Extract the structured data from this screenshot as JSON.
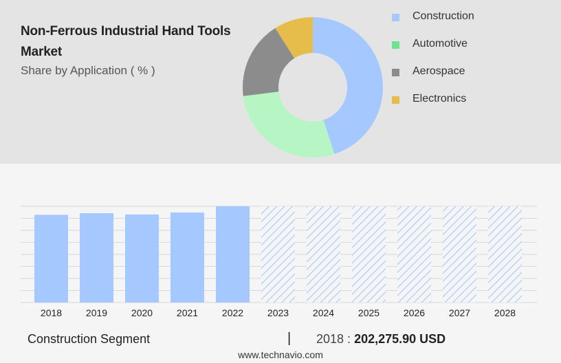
{
  "header": {
    "title": "Non-Ferrous Industrial Hand Tools Market",
    "subtitle": "Share by Application ( % )"
  },
  "legend": [
    {
      "label": "Construction",
      "color": "#a4c8ff"
    },
    {
      "label": "Automotive",
      "color": "#6ee38f"
    },
    {
      "label": "Aerospace",
      "color": "#8c8c8c"
    },
    {
      "label": "Electronics",
      "color": "#e6bd4a"
    }
  ],
  "footer": {
    "segment": "Construction Segment",
    "separator": "|",
    "year_label": "2018 :",
    "value": "202,275.90 USD",
    "source": "www.technavio.com"
  },
  "chart_data": [
    {
      "type": "pie",
      "subtype": "donut",
      "title": "Share by Application ( % )",
      "slices": [
        {
          "label": "Construction",
          "value": 45,
          "color": "#a4c8ff"
        },
        {
          "label": "Automotive",
          "value": 28,
          "color": "#b7f5c4"
        },
        {
          "label": "Aerospace",
          "value": 18,
          "color": "#8c8c8c"
        },
        {
          "label": "Electronics",
          "value": 9,
          "color": "#e6bd4a"
        }
      ]
    },
    {
      "type": "bar",
      "categories": [
        "2018",
        "2019",
        "2020",
        "2021",
        "2022",
        "2023",
        "2024",
        "2025",
        "2026",
        "2027",
        "2028"
      ],
      "values": [
        202275.9,
        206000,
        203000,
        207500,
        222000,
        null,
        null,
        null,
        null,
        null,
        null
      ],
      "forecast": [
        false,
        false,
        false,
        false,
        false,
        true,
        true,
        true,
        true,
        true,
        true
      ],
      "forecast_fill": 222000,
      "ylim": [
        0,
        222000
      ],
      "grid": true,
      "colors": {
        "bar": "#a4c8ff",
        "hatch": "#a4c8ff",
        "grid": "#d8d8d8"
      }
    }
  ]
}
